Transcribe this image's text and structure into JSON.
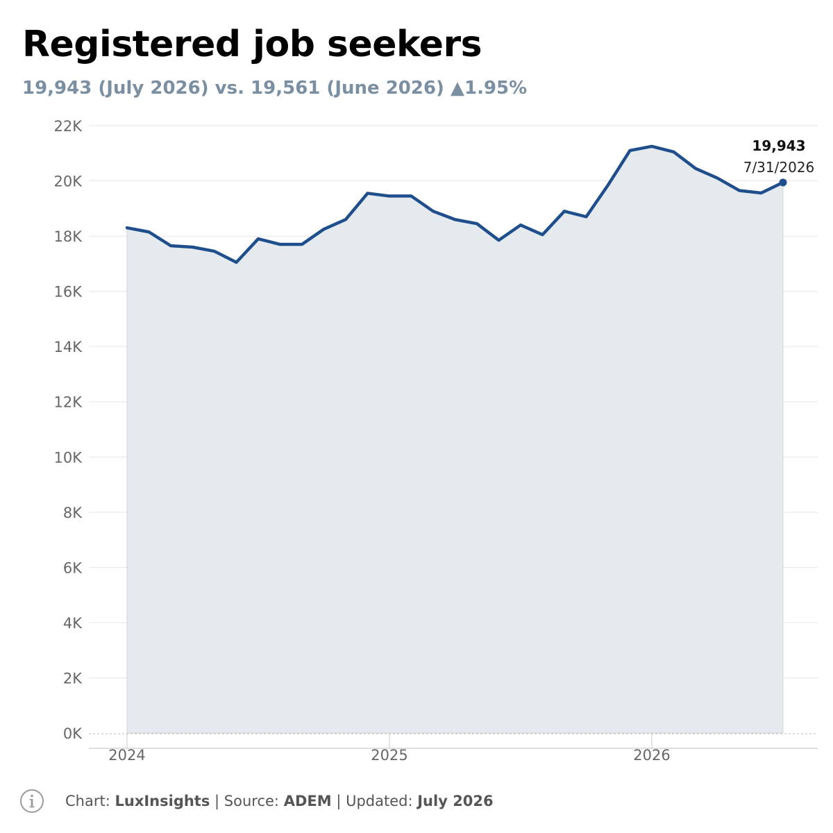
{
  "title": "Registered job seekers",
  "subtitle": {
    "current": "19,943 (July 2026)",
    "vs": "vs.",
    "previous": "19,561 (June 2026)",
    "change": "▲1.95%"
  },
  "colors": {
    "line": "#1f4e8c",
    "area": "#e4eaee",
    "subtitle": "#7b8fa3",
    "grid": "#e6e6e6"
  },
  "chart_data": {
    "type": "area",
    "ylim": [
      0,
      22000
    ],
    "yticks": [
      {
        "value": 0,
        "label": "0K"
      },
      {
        "value": 2000,
        "label": "2K"
      },
      {
        "value": 4000,
        "label": "4K"
      },
      {
        "value": 6000,
        "label": "6K"
      },
      {
        "value": 8000,
        "label": "8K"
      },
      {
        "value": 10000,
        "label": "10K"
      },
      {
        "value": 12000,
        "label": "12K"
      },
      {
        "value": 14000,
        "label": "14K"
      },
      {
        "value": 16000,
        "label": "16K"
      },
      {
        "value": 18000,
        "label": "18K"
      },
      {
        "value": 20000,
        "label": "20K"
      },
      {
        "value": 22000,
        "label": "22K"
      }
    ],
    "xticks": [
      {
        "label": "2024",
        "index": 0
      },
      {
        "label": "2025",
        "index": 12
      },
      {
        "label": "2026",
        "index": 24
      }
    ],
    "x": [
      "2024-01",
      "2024-02",
      "2024-03",
      "2024-04",
      "2024-05",
      "2024-06",
      "2024-07",
      "2024-08",
      "2024-09",
      "2024-10",
      "2024-11",
      "2024-12",
      "2025-01",
      "2025-02",
      "2025-03",
      "2025-04",
      "2025-05",
      "2025-06",
      "2025-07",
      "2025-08",
      "2025-09",
      "2025-10",
      "2025-11",
      "2025-12",
      "2026-01",
      "2026-02",
      "2026-03",
      "2026-04",
      "2026-05",
      "2026-06",
      "2026-07"
    ],
    "values": [
      18300,
      18150,
      17650,
      17600,
      17450,
      17050,
      17900,
      17700,
      17700,
      18250,
      18600,
      19550,
      19450,
      19450,
      18900,
      18600,
      18450,
      17850,
      18400,
      18050,
      18900,
      18700,
      19850,
      21100,
      21250,
      21050,
      20450,
      20100,
      19650,
      19561,
      19943
    ],
    "annotation": {
      "value": "19,943",
      "date": "7/31/2026"
    },
    "grid": true
  },
  "footer": {
    "chart_label": "Chart:",
    "chart_value": "LuxInsights",
    "source_label": "Source:",
    "source_value": "ADEM",
    "updated_label": "Updated:",
    "updated_value": "July 2026",
    "separator": "|"
  }
}
